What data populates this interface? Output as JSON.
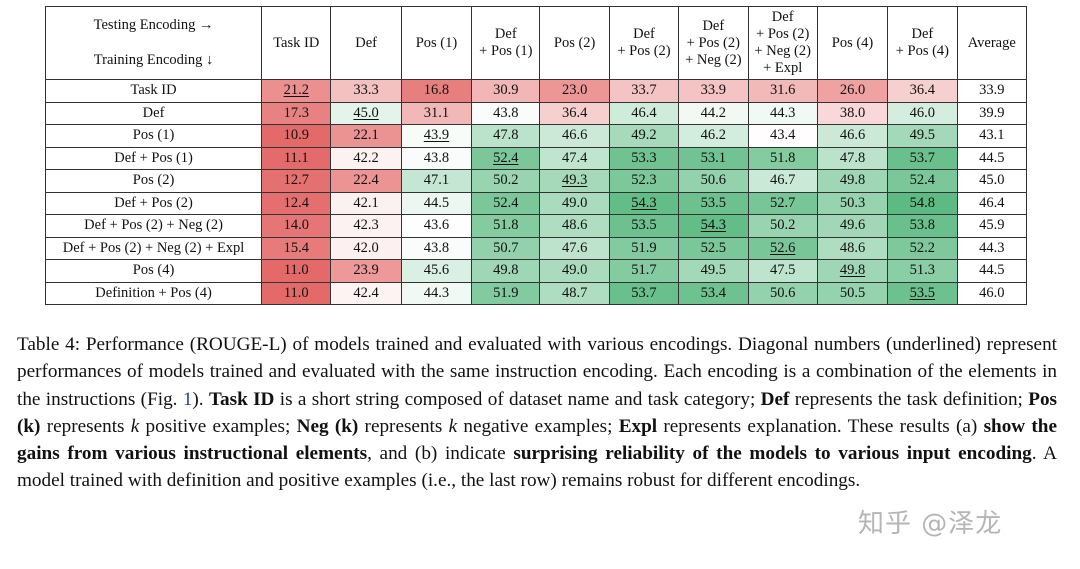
{
  "chart_data": {
    "type": "table",
    "corner": {
      "columns_label": "Testing Encoding →",
      "rows_label": "Training Encoding ↓"
    },
    "columns": [
      [
        "Task ID"
      ],
      [
        "Def"
      ],
      [
        "Pos (1)"
      ],
      [
        "Def",
        "+ Pos (1)"
      ],
      [
        "Pos (2)"
      ],
      [
        "Def",
        "+ Pos (2)"
      ],
      [
        "Def",
        "+ Pos (2)",
        "+ Neg (2)"
      ],
      [
        "Def",
        "+ Pos (2)",
        "+ Neg (2)",
        "+ Expl"
      ],
      [
        "Pos (4)"
      ],
      [
        "Def",
        "+ Pos (4)"
      ],
      [
        "Average"
      ]
    ],
    "rows": [
      {
        "label": "Task ID",
        "values": [
          "21.2",
          "33.3",
          "16.8",
          "30.9",
          "23.0",
          "33.7",
          "33.9",
          "31.6",
          "26.0",
          "36.4",
          "33.9"
        ],
        "diag": 0
      },
      {
        "label": "Def",
        "values": [
          "17.3",
          "45.0",
          "31.1",
          "43.8",
          "36.4",
          "46.4",
          "44.2",
          "44.3",
          "38.0",
          "46.0",
          "39.9"
        ],
        "diag": 1
      },
      {
        "label": "Pos (1)",
        "values": [
          "10.9",
          "22.1",
          "43.9",
          "47.8",
          "46.6",
          "49.2",
          "46.2",
          "43.4",
          "46.6",
          "49.5",
          "43.1"
        ],
        "diag": 2
      },
      {
        "label": "Def + Pos (1)",
        "values": [
          "11.1",
          "42.2",
          "43.8",
          "52.4",
          "47.4",
          "53.3",
          "53.1",
          "51.8",
          "47.8",
          "53.7",
          "44.5"
        ],
        "diag": 3
      },
      {
        "label": "Pos (2)",
        "values": [
          "12.7",
          "22.4",
          "47.1",
          "50.2",
          "49.3",
          "52.3",
          "50.6",
          "46.7",
          "49.8",
          "52.4",
          "45.0"
        ],
        "diag": 4
      },
      {
        "label": "Def + Pos (2)",
        "values": [
          "12.4",
          "42.1",
          "44.5",
          "52.4",
          "49.0",
          "54.3",
          "53.5",
          "52.7",
          "50.3",
          "54.8",
          "46.4"
        ],
        "diag": 5
      },
      {
        "label": "Def + Pos (2) + Neg (2)",
        "values": [
          "14.0",
          "42.3",
          "43.6",
          "51.8",
          "48.6",
          "53.5",
          "54.3",
          "50.2",
          "49.6",
          "53.8",
          "45.9"
        ],
        "diag": 6
      },
      {
        "label": "Def + Pos (2) + Neg (2) + Expl",
        "values": [
          "15.4",
          "42.0",
          "43.8",
          "50.7",
          "47.6",
          "51.9",
          "52.5",
          "52.6",
          "48.6",
          "52.2",
          "44.3"
        ],
        "diag": 7
      },
      {
        "label": "Pos (4)",
        "values": [
          "11.0",
          "23.9",
          "45.6",
          "49.8",
          "49.0",
          "51.7",
          "49.5",
          "47.5",
          "49.8",
          "51.3",
          "44.5"
        ],
        "diag": 8
      },
      {
        "label": "Definition  + Pos (4)",
        "values": [
          "11.0",
          "42.4",
          "44.3",
          "51.9",
          "48.7",
          "53.7",
          "53.4",
          "50.6",
          "50.5",
          "53.5",
          "46.0"
        ],
        "diag": 9
      }
    ],
    "color_scale": {
      "low": 10.9,
      "mid": 43.5,
      "high": 54.8,
      "low_color": "#e46a6a",
      "high_color": "#5cba82"
    }
  },
  "caption": {
    "parts": [
      {
        "t": "Table 4: Performance (ROUGE-L) of models trained and evaluated with various encodings. Diagonal numbers (underlined) represent performances of models trained and evaluated with the same instruction encoding. Each encoding is a combination of the elements in the instructions (Fig. "
      },
      {
        "t": "1",
        "s": "link"
      },
      {
        "t": ").  "
      },
      {
        "t": "Task ID",
        "s": "b"
      },
      {
        "t": " is a short string composed of dataset name and task category; "
      },
      {
        "t": "Def",
        "s": "b"
      },
      {
        "t": " represents the task definition; "
      },
      {
        "t": "Pos (k)",
        "s": "b"
      },
      {
        "t": " represents "
      },
      {
        "t": "k",
        "s": "i"
      },
      {
        "t": " positive examples; "
      },
      {
        "t": "Neg (k)",
        "s": "b"
      },
      {
        "t": " represents "
      },
      {
        "t": "k",
        "s": "i"
      },
      {
        "t": " negative examples; "
      },
      {
        "t": "Expl",
        "s": "b"
      },
      {
        "t": " represents explanation. These results (a) "
      },
      {
        "t": "show the gains from various instructional elements",
        "s": "b"
      },
      {
        "t": ", and (b) indicate "
      },
      {
        "t": "surprising reliability of the models to various input encoding",
        "s": "b"
      },
      {
        "t": ". A model trained with definition and positive examples (i.e., the last row) remains robust for different encodings."
      }
    ]
  },
  "watermark": "知乎 @泽龙"
}
